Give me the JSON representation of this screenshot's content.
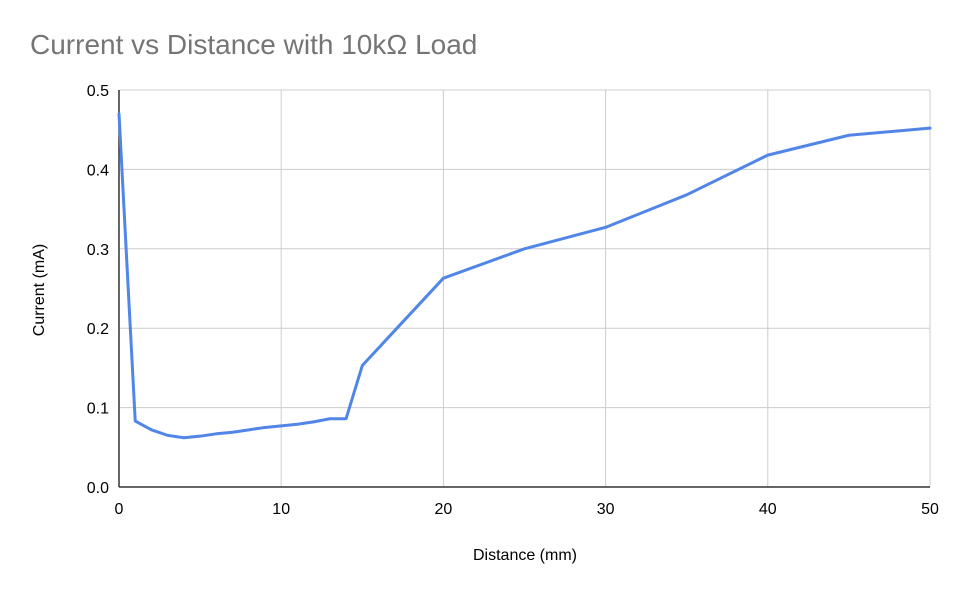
{
  "chart_data": {
    "type": "line",
    "title": "Current vs Distance with 10kΩ Load",
    "xlabel": "Distance (mm)",
    "ylabel": "Current (mA)",
    "xlim": [
      0,
      50
    ],
    "ylim": [
      0,
      0.5
    ],
    "x_ticks": [
      0,
      10,
      20,
      30,
      40,
      50
    ],
    "y_ticks": [
      0.0,
      0.1,
      0.2,
      0.3,
      0.4,
      0.5
    ],
    "x_tick_labels": [
      "0",
      "10",
      "20",
      "30",
      "40",
      "50"
    ],
    "y_tick_labels": [
      "0.0",
      "0.1",
      "0.2",
      "0.3",
      "0.4",
      "0.5"
    ],
    "grid": true,
    "legend": "none",
    "series": [
      {
        "color": "#5186e8",
        "x": [
          0,
          1,
          2,
          3,
          4,
          5,
          6,
          7,
          8,
          9,
          10,
          11,
          12,
          13,
          14,
          15,
          20,
          25,
          30,
          35,
          40,
          45,
          50
        ],
        "y": [
          0.47,
          0.083,
          0.072,
          0.065,
          0.062,
          0.064,
          0.067,
          0.069,
          0.072,
          0.075,
          0.077,
          0.079,
          0.082,
          0.086,
          0.086,
          0.153,
          0.263,
          0.3,
          0.327,
          0.368,
          0.418,
          0.443,
          0.452
        ]
      }
    ]
  }
}
